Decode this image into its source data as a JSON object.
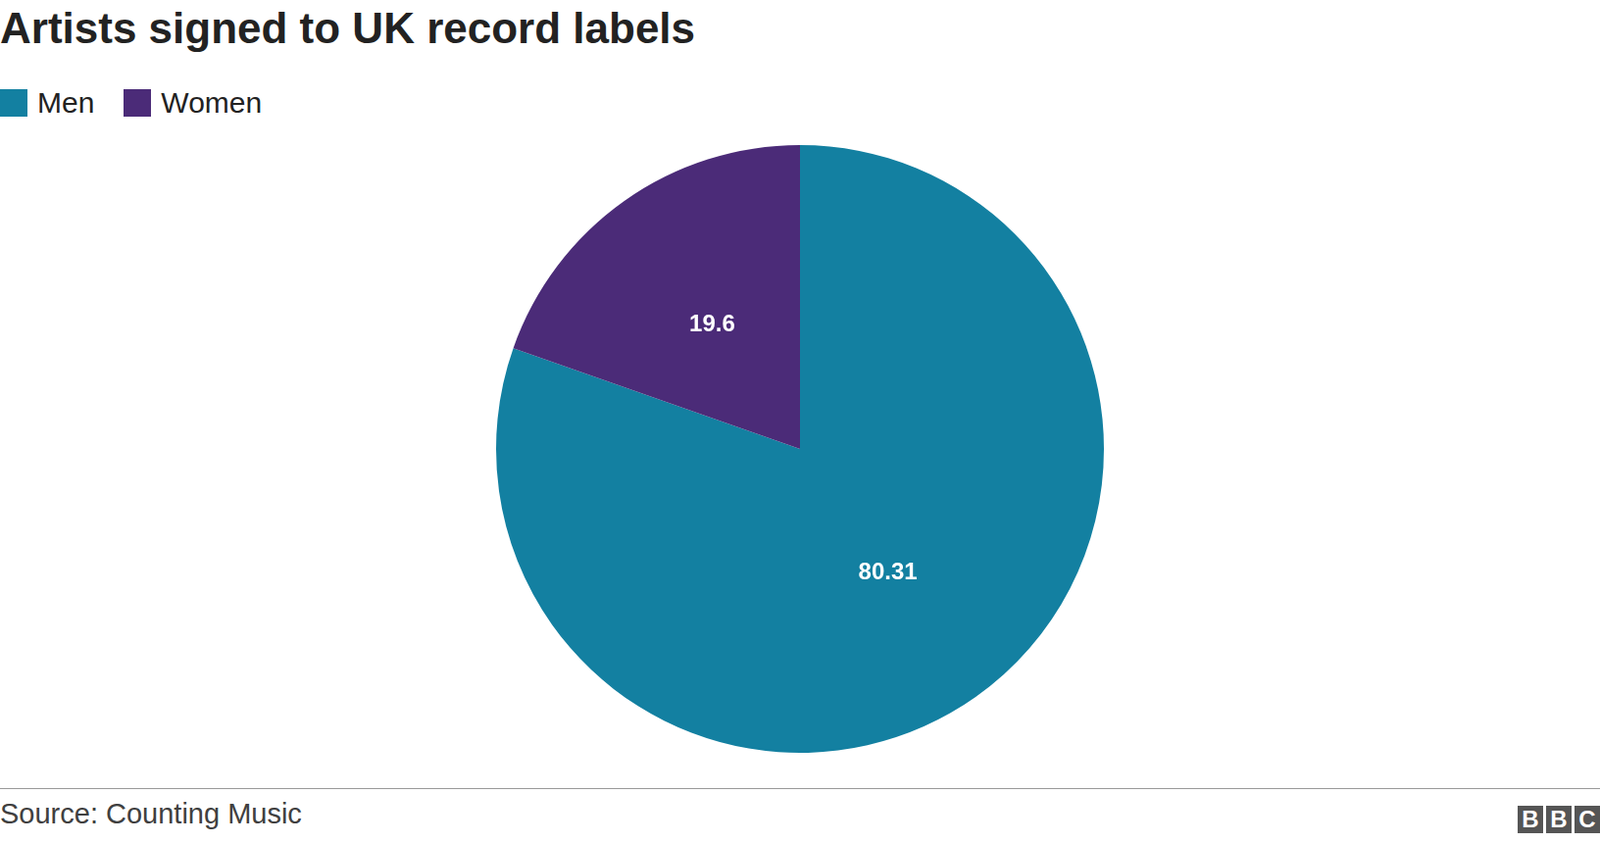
{
  "chart_data": {
    "type": "pie",
    "title": "Artists signed to UK record labels",
    "categories": [
      "Men",
      "Women"
    ],
    "values": [
      80.31,
      19.6
    ],
    "colors": [
      "#1380a1",
      "#4b2b78"
    ],
    "legend": "top-left",
    "data_labels": true,
    "source": "Source: Counting Music",
    "credit": "BBC"
  }
}
